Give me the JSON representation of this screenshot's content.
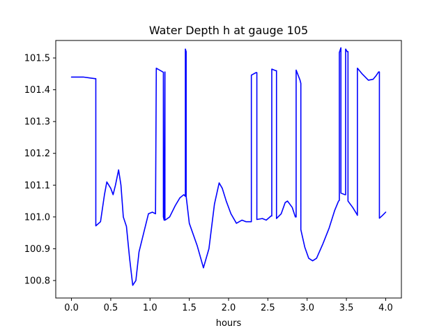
{
  "chart_data": {
    "type": "line",
    "title": "Water Depth h at gauge 105",
    "xlabel": "hours",
    "ylabel": "",
    "xlim": [
      -0.2,
      4.2
    ],
    "ylim": [
      100.745,
      101.555
    ],
    "xticks": [
      0.0,
      0.5,
      1.0,
      1.5,
      2.0,
      2.5,
      3.0,
      3.5,
      4.0
    ],
    "xtick_labels": [
      "0.0",
      "0.5",
      "1.0",
      "1.5",
      "2.0",
      "2.5",
      "3.0",
      "3.5",
      "4.0"
    ],
    "yticks": [
      100.8,
      100.9,
      101.0,
      101.1,
      101.2,
      101.3,
      101.4,
      101.5
    ],
    "ytick_labels": [
      "100.8",
      "100.9",
      "101.0",
      "101.1",
      "101.2",
      "101.3",
      "101.4",
      "101.5"
    ],
    "grid": false,
    "legend": "none",
    "series": [
      {
        "color": "#0000ff",
        "x": [
          0.0,
          0.15,
          0.3,
          0.31,
          0.31,
          0.37,
          0.42,
          0.45,
          0.5,
          0.53,
          0.56,
          0.6,
          0.63,
          0.66,
          0.7,
          0.74,
          0.78,
          0.82,
          0.86,
          0.92,
          0.98,
          1.03,
          1.07,
          1.08,
          1.1,
          1.17,
          1.17,
          1.18,
          1.19,
          1.19,
          1.21,
          1.25,
          1.32,
          1.38,
          1.43,
          1.45,
          1.45,
          1.46,
          1.46,
          1.5,
          1.6,
          1.68,
          1.75,
          1.82,
          1.88,
          1.92,
          1.97,
          2.03,
          2.1,
          2.17,
          2.22,
          2.28,
          2.29,
          2.29,
          2.35,
          2.36,
          2.36,
          2.43,
          2.48,
          2.54,
          2.55,
          2.55,
          2.6,
          2.61,
          2.61,
          2.67,
          2.72,
          2.75,
          2.81,
          2.85,
          2.86,
          2.86,
          2.91,
          2.92,
          2.92,
          2.97,
          3.02,
          3.07,
          3.12,
          3.2,
          3.28,
          3.35,
          3.4,
          3.41,
          3.41,
          3.43,
          3.43,
          3.48,
          3.49,
          3.49,
          3.51,
          3.52,
          3.52,
          3.58,
          3.63,
          3.64,
          3.64,
          3.7,
          3.78,
          3.84,
          3.88,
          3.91,
          3.92,
          3.92,
          3.96,
          4.0
        ],
        "y": [
          101.44,
          101.44,
          101.435,
          101.435,
          100.972,
          100.985,
          101.07,
          101.11,
          101.09,
          101.07,
          101.1,
          101.148,
          101.1,
          101.0,
          100.97,
          100.87,
          100.785,
          100.8,
          100.89,
          100.95,
          101.01,
          101.015,
          101.01,
          101.468,
          101.465,
          101.455,
          101.0,
          100.99,
          101.456,
          100.99,
          100.993,
          101.0,
          101.035,
          101.06,
          101.07,
          101.065,
          101.528,
          101.52,
          101.065,
          100.98,
          100.91,
          100.84,
          100.9,
          101.04,
          101.107,
          101.09,
          101.05,
          101.01,
          100.98,
          100.99,
          100.985,
          100.985,
          100.985,
          101.446,
          101.454,
          101.454,
          100.992,
          100.995,
          100.99,
          101.003,
          101.003,
          101.465,
          101.46,
          101.46,
          100.995,
          101.01,
          101.045,
          101.05,
          101.03,
          101.0,
          101.0,
          101.462,
          101.43,
          101.42,
          100.96,
          100.905,
          100.87,
          100.862,
          100.87,
          100.915,
          100.965,
          101.02,
          101.05,
          101.052,
          101.517,
          101.532,
          101.075,
          101.07,
          101.07,
          101.528,
          101.52,
          101.52,
          101.05,
          101.03,
          101.01,
          101.005,
          101.468,
          101.45,
          101.43,
          101.433,
          101.445,
          101.456,
          101.456,
          100.996,
          101.005,
          101.015
        ]
      }
    ]
  }
}
